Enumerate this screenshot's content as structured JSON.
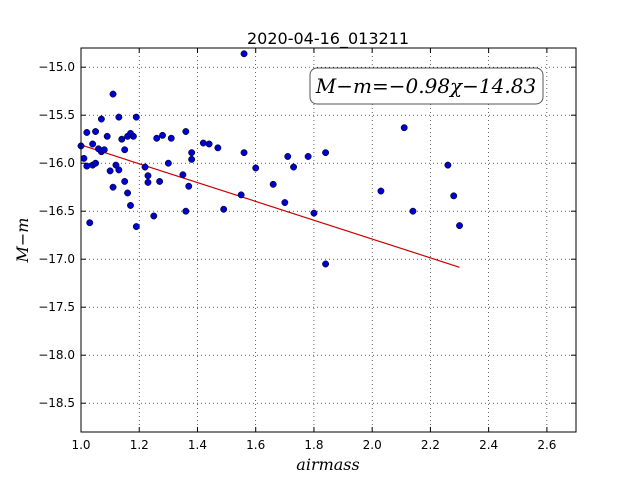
{
  "chart_data": {
    "type": "scatter",
    "title": "2020-04-16_013211",
    "xlabel": "airmass",
    "ylabel": "M−m",
    "annotation": "M−m=−0.98χ−14.83",
    "xlim": [
      1.0,
      2.7
    ],
    "ylim": [
      -18.8,
      -14.8
    ],
    "xticks": [
      "1.0",
      "1.2",
      "1.4",
      "1.6",
      "1.8",
      "2.0",
      "2.2",
      "2.4",
      "2.6"
    ],
    "yticks": [
      "−15.0",
      "−15.5",
      "−16.0",
      "−16.5",
      "−17.0",
      "−17.5",
      "−18.0",
      "−18.5"
    ],
    "grid": true,
    "marker_color": "#0000cc",
    "fit_color": "#cc0000",
    "fit": {
      "slope": -0.98,
      "intercept": -14.83,
      "x_range": [
        1.0,
        2.3
      ]
    },
    "points": [
      [
        1.0,
        -15.82
      ],
      [
        1.01,
        -15.95
      ],
      [
        1.02,
        -16.03
      ],
      [
        1.02,
        -15.68
      ],
      [
        1.03,
        -16.62
      ],
      [
        1.04,
        -15.8
      ],
      [
        1.04,
        -16.02
      ],
      [
        1.05,
        -15.67
      ],
      [
        1.05,
        -16.0
      ],
      [
        1.06,
        -15.85
      ],
      [
        1.07,
        -15.54
      ],
      [
        1.07,
        -15.88
      ],
      [
        1.08,
        -15.86
      ],
      [
        1.09,
        -15.72
      ],
      [
        1.1,
        -16.08
      ],
      [
        1.11,
        -16.25
      ],
      [
        1.11,
        -15.28
      ],
      [
        1.12,
        -16.02
      ],
      [
        1.13,
        -15.52
      ],
      [
        1.13,
        -16.07
      ],
      [
        1.14,
        -15.75
      ],
      [
        1.15,
        -15.86
      ],
      [
        1.15,
        -16.19
      ],
      [
        1.16,
        -15.72
      ],
      [
        1.16,
        -16.31
      ],
      [
        1.17,
        -15.69
      ],
      [
        1.17,
        -16.44
      ],
      [
        1.18,
        -15.72
      ],
      [
        1.19,
        -15.52
      ],
      [
        1.19,
        -16.66
      ],
      [
        1.22,
        -16.04
      ],
      [
        1.23,
        -16.13
      ],
      [
        1.23,
        -16.2
      ],
      [
        1.25,
        -16.55
      ],
      [
        1.26,
        -15.74
      ],
      [
        1.27,
        -16.19
      ],
      [
        1.28,
        -15.71
      ],
      [
        1.3,
        -16.0
      ],
      [
        1.31,
        -15.74
      ],
      [
        1.35,
        -16.12
      ],
      [
        1.36,
        -15.67
      ],
      [
        1.36,
        -16.5
      ],
      [
        1.37,
        -16.24
      ],
      [
        1.38,
        -15.89
      ],
      [
        1.38,
        -15.96
      ],
      [
        1.42,
        -15.79
      ],
      [
        1.44,
        -15.8
      ],
      [
        1.47,
        -15.84
      ],
      [
        1.49,
        -16.48
      ],
      [
        1.55,
        -16.33
      ],
      [
        1.56,
        -14.86
      ],
      [
        1.56,
        -15.89
      ],
      [
        1.6,
        -16.05
      ],
      [
        1.66,
        -16.22
      ],
      [
        1.7,
        -16.41
      ],
      [
        1.71,
        -15.93
      ],
      [
        1.73,
        -16.04
      ],
      [
        1.78,
        -15.93
      ],
      [
        1.8,
        -16.52
      ],
      [
        1.84,
        -15.89
      ],
      [
        1.84,
        -17.05
      ],
      [
        2.03,
        -16.29
      ],
      [
        2.11,
        -15.63
      ],
      [
        2.14,
        -16.5
      ],
      [
        2.26,
        -16.02
      ],
      [
        2.28,
        -16.34
      ],
      [
        2.3,
        -16.65
      ]
    ]
  }
}
